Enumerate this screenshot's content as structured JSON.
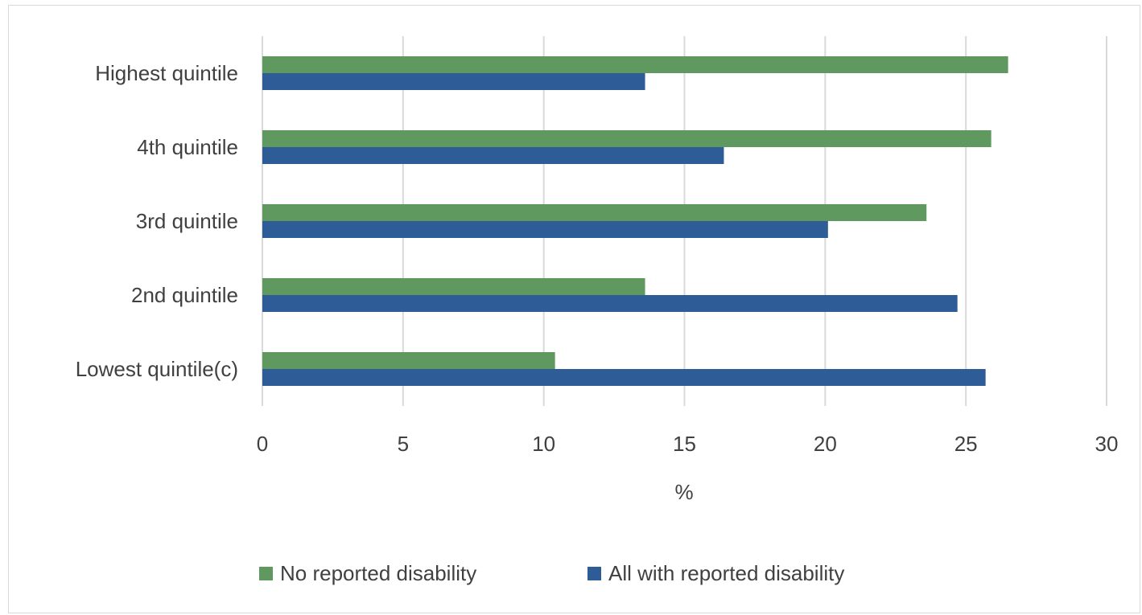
{
  "chart_data": {
    "type": "bar",
    "orientation": "horizontal",
    "categories": [
      "Highest quintile",
      "4th quintile",
      "3rd quintile",
      "2nd quintile",
      "Lowest quintile(c)"
    ],
    "series": [
      {
        "name": "No reported disability",
        "color": "#5f9960",
        "values": [
          26.5,
          25.9,
          23.6,
          13.6,
          10.4
        ]
      },
      {
        "name": "All with reported disability",
        "color": "#2e5c96",
        "values": [
          13.6,
          16.4,
          20.1,
          24.7,
          25.7
        ]
      }
    ],
    "xlabel": "%",
    "xlim": [
      0,
      30
    ],
    "xticks": [
      "0",
      "5",
      "10",
      "15",
      "20",
      "25",
      "30"
    ],
    "grid": true,
    "legend_position": "bottom"
  }
}
